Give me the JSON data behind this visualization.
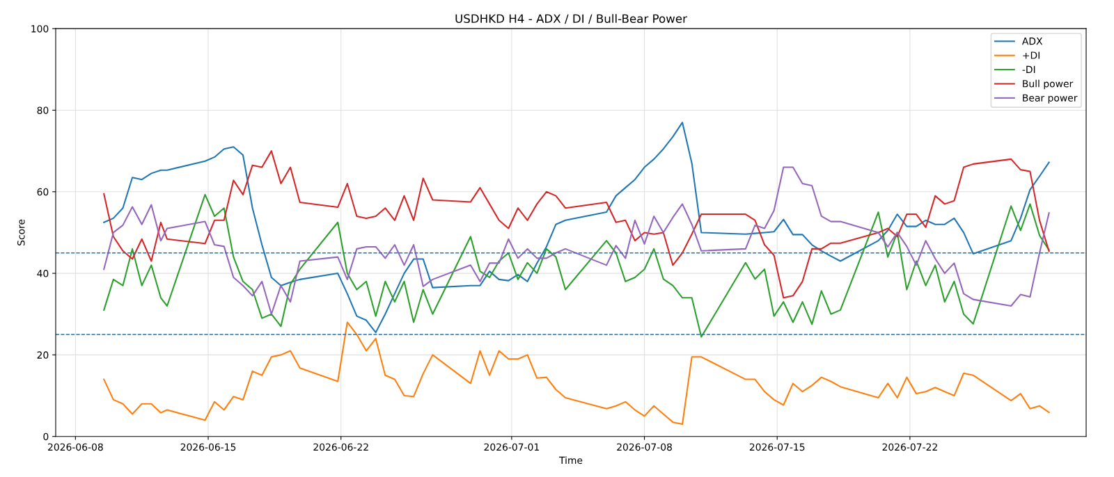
{
  "chart_data": {
    "type": "line",
    "title": "USDHKD H4 - ADX / DI / Bull-Bear Power",
    "xlabel": "Time",
    "ylabel": "Score",
    "x": [
      "2026-06-09T12:00",
      "2026-06-10T00:00",
      "2026-06-10T12:00",
      "2026-06-11T00:00",
      "2026-06-11T12:00",
      "2026-06-12T00:00",
      "2026-06-12T12:00",
      "2026-06-12T20:00",
      "2026-06-14T20:00",
      "2026-06-15T08:00",
      "2026-06-15T20:00",
      "2026-06-16T08:00",
      "2026-06-16T20:00",
      "2026-06-17T08:00",
      "2026-06-17T20:00",
      "2026-06-18T08:00",
      "2026-06-18T20:00",
      "2026-06-19T08:00",
      "2026-06-19T20:00",
      "2026-06-21T20:00",
      "2026-06-22T08:00",
      "2026-06-22T20:00",
      "2026-06-23T08:00",
      "2026-06-23T20:00",
      "2026-06-24T08:00",
      "2026-06-24T20:00",
      "2026-06-25T08:00",
      "2026-06-25T20:00",
      "2026-06-26T08:00",
      "2026-06-26T20:00",
      "2026-06-28T20:00",
      "2026-06-29T08:00",
      "2026-06-29T20:00",
      "2026-06-30T08:00",
      "2026-06-30T20:00",
      "2026-07-01T08:00",
      "2026-07-01T20:00",
      "2026-07-02T08:00",
      "2026-07-02T20:00",
      "2026-07-03T08:00",
      "2026-07-03T20:00",
      "2026-07-06T00:00",
      "2026-07-06T12:00",
      "2026-07-07T00:00",
      "2026-07-07T12:00",
      "2026-07-08T00:00",
      "2026-07-08T12:00",
      "2026-07-09T00:00",
      "2026-07-09T12:00",
      "2026-07-10T00:00",
      "2026-07-10T12:00",
      "2026-07-11T00:00",
      "2026-07-13T08:00",
      "2026-07-13T20:00",
      "2026-07-14T08:00",
      "2026-07-14T20:00",
      "2026-07-15T08:00",
      "2026-07-15T20:00",
      "2026-07-16T08:00",
      "2026-07-16T20:00",
      "2026-07-17T08:00",
      "2026-07-17T20:00",
      "2026-07-18T08:00",
      "2026-07-20T08:00",
      "2026-07-20T20:00",
      "2026-07-21T08:00",
      "2026-07-21T20:00",
      "2026-07-22T08:00",
      "2026-07-22T20:00",
      "2026-07-23T08:00",
      "2026-07-23T20:00",
      "2026-07-24T08:00",
      "2026-07-24T20:00",
      "2026-07-25T08:00",
      "2026-07-27T08:00",
      "2026-07-27T20:00",
      "2026-07-28T08:00",
      "2026-07-28T20:00",
      "2026-07-29T08:00"
    ],
    "series": [
      {
        "name": "ADX",
        "color": "#1f77b4",
        "values": [
          52.5,
          53.5,
          56,
          63.5,
          63,
          64.5,
          65.3,
          65.3,
          67.5,
          68.5,
          70.5,
          71,
          69,
          56,
          47,
          39,
          37,
          37.8,
          38.5,
          40,
          35,
          29.5,
          28.5,
          25.5,
          30,
          35,
          40,
          43.5,
          43.5,
          36.5,
          37,
          37,
          40.5,
          38.5,
          38.2,
          39.7,
          38,
          42.5,
          46.5,
          52,
          53,
          55,
          59,
          61,
          63,
          66,
          68,
          70.5,
          73.5,
          77,
          67,
          50,
          49.6,
          49.8,
          50,
          50.2,
          53.2,
          49.5,
          49.5,
          47,
          45.5,
          44.2,
          43,
          48,
          50.5,
          54.5,
          51.5,
          51.5,
          53,
          52,
          52,
          53.5,
          50,
          44.8,
          48,
          53.5,
          60.5,
          63.8,
          67.2
        ]
      },
      {
        "name": "+DI",
        "color": "#ff7f0e",
        "values": [
          14,
          9,
          8,
          5.5,
          8,
          8,
          5.8,
          6.5,
          4,
          8.5,
          6.5,
          9.8,
          9,
          16,
          15,
          19.5,
          20,
          21,
          16.8,
          13.5,
          28,
          25,
          21,
          24,
          15,
          14,
          10,
          9.8,
          15.4,
          20,
          13,
          21,
          15,
          21,
          19,
          19,
          20,
          14.3,
          14.5,
          11.5,
          9.5,
          6.8,
          7.5,
          8.5,
          6.5,
          5,
          7.5,
          5.5,
          3.5,
          3,
          19.5,
          19.5,
          14,
          14,
          11,
          9,
          7.7,
          13,
          11,
          12.5,
          14.5,
          13.5,
          12.2,
          9.5,
          13,
          9.5,
          14.5,
          10.5,
          11,
          12,
          11,
          10,
          15.5,
          15,
          8.8,
          10.5,
          6.8,
          7.5,
          5.9
        ]
      },
      {
        "name": "-DI",
        "color": "#2ca02c",
        "values": [
          31,
          38.5,
          37,
          46,
          37,
          42,
          34,
          32,
          59.3,
          54,
          56,
          44,
          38,
          36,
          29,
          30,
          27,
          37.3,
          41,
          52.5,
          40,
          36,
          38,
          29.5,
          38,
          33,
          38,
          28,
          36,
          30,
          49,
          40.5,
          39,
          43,
          45,
          38.5,
          42.6,
          40,
          46,
          44,
          36,
          48,
          45,
          38,
          39,
          41,
          46,
          38.6,
          37,
          34,
          34,
          24.4,
          42.6,
          38.6,
          41,
          29.5,
          33,
          28,
          33,
          27.5,
          35.7,
          30,
          31,
          55,
          44,
          50,
          36,
          43,
          37,
          42,
          33,
          38,
          30,
          27.6,
          56.5,
          50.5,
          57,
          49.3,
          45.7
        ]
      },
      {
        "name": "Bull power",
        "color": "#d62728",
        "values": [
          59.5,
          49,
          45.5,
          43.5,
          48.4,
          43,
          52.5,
          48.4,
          47.3,
          53,
          53,
          62.8,
          59.3,
          66.5,
          66,
          70,
          62,
          66,
          57.4,
          56.2,
          62,
          54,
          53.5,
          54,
          56,
          53,
          59,
          53,
          63.3,
          58,
          57.5,
          61,
          57,
          53,
          51,
          56,
          53,
          57,
          60,
          59,
          56,
          57.4,
          52.5,
          53,
          48,
          50,
          49.6,
          50,
          42,
          45,
          49.6,
          54.5,
          54.5,
          53,
          47,
          44.4,
          34,
          34.5,
          38,
          46,
          46,
          47.4,
          47.4,
          50,
          51,
          49,
          54.5,
          54.5,
          51.3,
          59,
          57,
          57.8,
          66,
          66.8,
          68,
          65.4,
          65,
          53,
          45.4
        ]
      },
      {
        "name": "Bear power",
        "color": "#9467bd",
        "values": [
          41,
          50,
          51.8,
          56.3,
          52,
          56.8,
          48,
          51,
          52.7,
          47,
          46.6,
          39,
          37,
          34.5,
          38,
          30,
          37,
          33,
          43,
          44,
          38.5,
          46,
          46.5,
          46.5,
          43.7,
          47,
          42,
          47,
          36.8,
          38.5,
          42,
          38,
          42.5,
          42.5,
          48.4,
          43.7,
          46,
          43.7,
          43.7,
          45,
          46,
          42,
          46.8,
          43.7,
          53,
          47.2,
          54,
          50,
          53.7,
          57,
          52,
          45.5,
          46,
          51.8,
          51,
          55.4,
          66,
          66,
          62,
          61.5,
          54,
          52.7,
          52.7,
          50,
          46.5,
          50,
          46.6,
          42,
          48,
          43.6,
          40,
          42.5,
          35,
          33.6,
          32,
          34.8,
          34.2,
          45,
          54.8
        ]
      }
    ],
    "ref_lines": [
      {
        "axis": "y",
        "value": 45,
        "color": "#1f77b4",
        "line_style": "dashed"
      },
      {
        "axis": "y",
        "value": 25,
        "color": "#1f77b4",
        "line_style": "dashed"
      }
    ],
    "xlim": [
      "2026-06-06T23:00",
      "2026-07-31T07:00"
    ],
    "xticks": [
      "2026-06-08",
      "2026-06-15",
      "2026-06-22",
      "2026-07-01",
      "2026-07-08",
      "2026-07-15",
      "2026-07-22"
    ],
    "ylim": [
      0,
      100
    ],
    "yticks": [
      0,
      20,
      40,
      60,
      80,
      100
    ],
    "grid": true,
    "legend": "top right",
    "line_style": "solid",
    "marker": "none"
  }
}
